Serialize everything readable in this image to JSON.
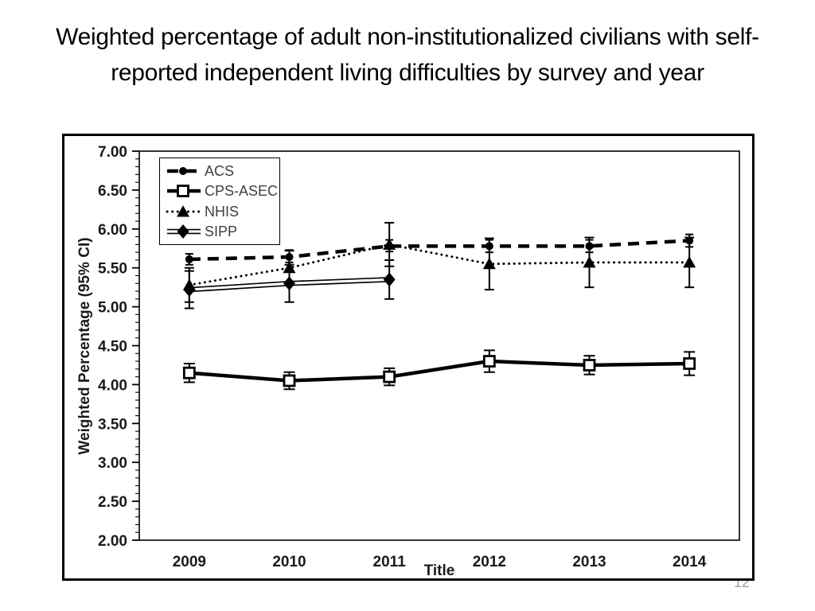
{
  "slide": {
    "title": "Weighted percentage of adult non-institutionalized civilians with self-reported independent living difficulties by survey and year",
    "page_number": "12"
  },
  "chart_data": {
    "type": "line",
    "title": "",
    "xlabel": "Title",
    "ylabel": "Weighted Percentage (95% CI)",
    "categories": [
      "2009",
      "2010",
      "2011",
      "2012",
      "2013",
      "2014"
    ],
    "ylim": [
      2.0,
      7.0
    ],
    "ytick_major": 0.5,
    "ytick_minor": 0.1,
    "ytick_decimals": 2,
    "grid": false,
    "legend_position": "top-left-inside",
    "error_bars": "95% CI",
    "series": [
      {
        "name": "ACS",
        "line": "dashed",
        "marker": "circle",
        "values": [
          5.61,
          5.64,
          5.78,
          5.78,
          5.78,
          5.85
        ],
        "ci_low": [
          5.54,
          5.57,
          5.71,
          5.7,
          5.7,
          5.77
        ],
        "ci_high": [
          5.68,
          5.73,
          5.86,
          5.86,
          5.86,
          5.93
        ]
      },
      {
        "name": "CPS-ASEC",
        "line": "solid",
        "marker": "square-open",
        "values": [
          4.15,
          4.05,
          4.1,
          4.3,
          4.25,
          4.27
        ],
        "ci_low": [
          4.03,
          3.94,
          3.99,
          4.16,
          4.13,
          4.12
        ],
        "ci_high": [
          4.27,
          4.16,
          4.21,
          4.44,
          4.37,
          4.42
        ]
      },
      {
        "name": "NHIS",
        "line": "dotted",
        "marker": "triangle",
        "values": [
          5.28,
          5.5,
          5.8,
          5.55,
          5.57,
          5.57
        ],
        "ci_low": [
          5.06,
          5.28,
          5.52,
          5.22,
          5.25,
          5.25
        ],
        "ci_high": [
          5.5,
          5.72,
          6.08,
          5.88,
          5.89,
          5.89
        ]
      },
      {
        "name": "SIPP",
        "line": "double",
        "marker": "diamond",
        "values": [
          5.22,
          5.3,
          5.35,
          null,
          null,
          null
        ],
        "ci_low": [
          4.98,
          5.06,
          5.1,
          null,
          null,
          null
        ],
        "ci_high": [
          5.46,
          5.54,
          5.6,
          null,
          null,
          null
        ]
      }
    ]
  },
  "colors": {
    "series": "#000000",
    "text": "#1a1a1a",
    "legend_text": "#404040",
    "page_number": "#9e9e9e",
    "background": "#ffffff"
  }
}
